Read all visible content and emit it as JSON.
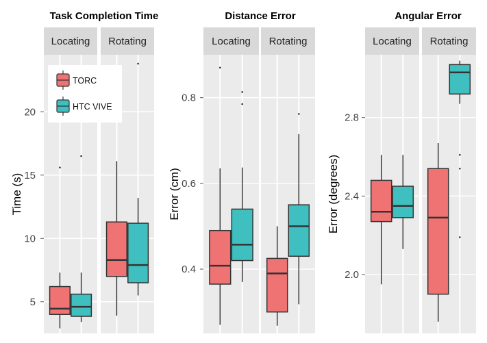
{
  "colors": {
    "TORC": "#f07373",
    "HTC VIVE": "#3fbfbf",
    "panel_bg": "#ebebeb",
    "strip_bg": "#d9d9d9",
    "grid": "#ffffff"
  },
  "chart_data": [
    {
      "type": "box",
      "title": "Task Completion Time",
      "ylabel": "Time (s)",
      "ylim": [
        2.5,
        24.5
      ],
      "yticks": [
        5,
        10,
        15,
        20
      ],
      "facets": [
        "Locating",
        "Rotating"
      ],
      "legend": {
        "entries": [
          "TORC",
          "HTC VIVE"
        ],
        "position": "top-left"
      },
      "boxes": [
        {
          "facet": "Locating",
          "series": "TORC",
          "whisker_low": 2.9,
          "q1": 4.0,
          "median": 4.45,
          "q3": 6.2,
          "whisker_high": 7.3,
          "outliers": [
            15.6
          ]
        },
        {
          "facet": "Locating",
          "series": "HTC VIVE",
          "whisker_low": 3.4,
          "q1": 3.85,
          "median": 4.6,
          "q3": 5.6,
          "whisker_high": 7.3,
          "outliers": [
            16.5
          ]
        },
        {
          "facet": "Rotating",
          "series": "TORC",
          "whisker_low": 3.9,
          "q1": 7.0,
          "median": 8.3,
          "q3": 11.3,
          "whisker_high": 16.1,
          "outliers": []
        },
        {
          "facet": "Rotating",
          "series": "HTC VIVE",
          "whisker_low": 5.5,
          "q1": 6.5,
          "median": 7.9,
          "q3": 11.2,
          "whisker_high": 13.2,
          "outliers": [
            23.8
          ]
        }
      ]
    },
    {
      "type": "box",
      "title": "Distance Error",
      "ylabel": "Error (cm)",
      "ylim": [
        0.25,
        0.9
      ],
      "yticks": [
        0.4,
        0.6,
        0.8
      ],
      "facets": [
        "Locating",
        "Rotating"
      ],
      "boxes": [
        {
          "facet": "Locating",
          "series": "TORC",
          "whisker_low": 0.27,
          "q1": 0.365,
          "median": 0.408,
          "q3": 0.49,
          "whisker_high": 0.635,
          "outliers": [
            0.87
          ]
        },
        {
          "facet": "Locating",
          "series": "HTC VIVE",
          "whisker_low": 0.37,
          "q1": 0.42,
          "median": 0.457,
          "q3": 0.54,
          "whisker_high": 0.637,
          "outliers": [
            0.785,
            0.813
          ]
        },
        {
          "facet": "Rotating",
          "series": "TORC",
          "whisker_low": 0.268,
          "q1": 0.3,
          "median": 0.39,
          "q3": 0.425,
          "whisker_high": 0.5,
          "outliers": []
        },
        {
          "facet": "Rotating",
          "series": "HTC VIVE",
          "whisker_low": 0.318,
          "q1": 0.43,
          "median": 0.5,
          "q3": 0.55,
          "whisker_high": 0.715,
          "outliers": [
            0.762
          ]
        }
      ]
    },
    {
      "type": "box",
      "title": "Angular Error",
      "ylabel": "Error (degrees)",
      "ylim": [
        1.7,
        3.12
      ],
      "yticks": [
        2.0,
        2.4,
        2.8
      ],
      "facets": [
        "Locating",
        "Rotating"
      ],
      "boxes": [
        {
          "facet": "Locating",
          "series": "TORC",
          "whisker_low": 1.95,
          "q1": 2.27,
          "median": 2.32,
          "q3": 2.48,
          "whisker_high": 2.61,
          "outliers": []
        },
        {
          "facet": "Locating",
          "series": "HTC VIVE",
          "whisker_low": 2.13,
          "q1": 2.29,
          "median": 2.35,
          "q3": 2.45,
          "whisker_high": 2.61,
          "outliers": []
        },
        {
          "facet": "Rotating",
          "series": "TORC",
          "whisker_low": 1.76,
          "q1": 1.9,
          "median": 2.29,
          "q3": 2.54,
          "whisker_high": 2.67,
          "outliers": []
        },
        {
          "facet": "Rotating",
          "series": "HTC VIVE",
          "whisker_low": 2.87,
          "q1": 2.92,
          "median": 3.03,
          "q3": 3.07,
          "whisker_high": 3.09,
          "outliers": [
            2.19,
            2.54,
            2.61
          ]
        }
      ]
    }
  ]
}
